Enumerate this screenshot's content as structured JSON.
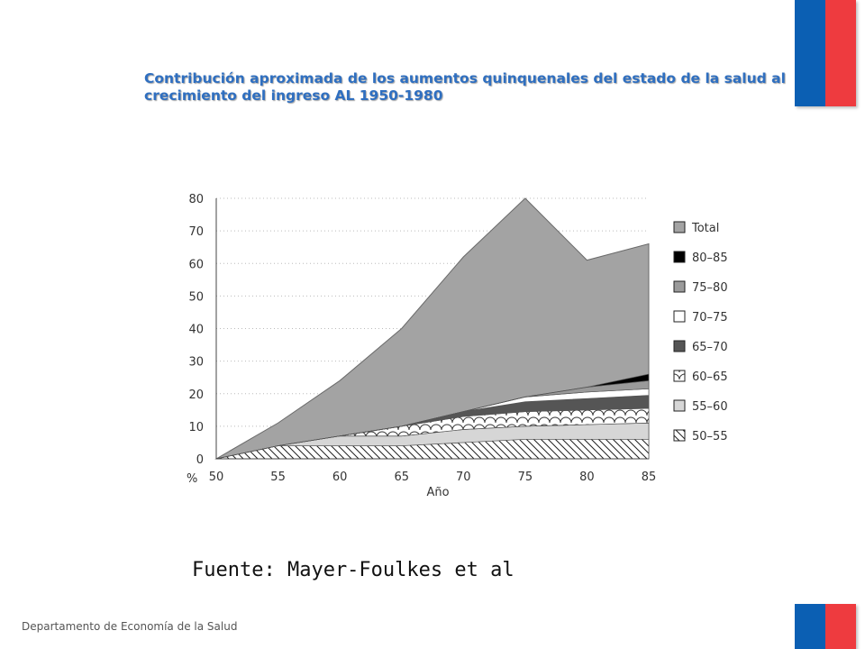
{
  "slide": {
    "title": "Contribución aproximada de los aumentos quinquenales del estado de la salud al crecimiento del ingreso AL 1950-1980",
    "source": "Fuente: Mayer-Foulkes et al",
    "footer": "Departamento de Economía de la Salud"
  },
  "flag_colors": {
    "blue": "#0b5fb3",
    "red": "#ee3b3f"
  },
  "chart_data": {
    "type": "area",
    "title": "",
    "xlabel": "Año",
    "ylabel": "%",
    "x": [
      50,
      55,
      60,
      65,
      70,
      75,
      80,
      85
    ],
    "xlim": [
      50,
      85
    ],
    "ylim": [
      0,
      80
    ],
    "yticks": [
      0,
      10,
      20,
      30,
      40,
      50,
      60,
      70,
      80
    ],
    "grid": "dotted horizontal",
    "legend_position": "right",
    "stacked": true,
    "series": [
      {
        "name": "50–55",
        "values": [
          0,
          4,
          4,
          4,
          5,
          6,
          6,
          6
        ],
        "fill": "hatch-diagonal"
      },
      {
        "name": "55–60",
        "values": [
          0,
          0,
          3,
          3,
          4,
          4,
          4.5,
          5
        ],
        "fill": "#d6d6d6"
      },
      {
        "name": "60–65",
        "values": [
          0,
          0,
          0,
          3,
          4,
          4.5,
          4.5,
          4.5
        ],
        "fill": "hatch-scallop"
      },
      {
        "name": "65–70",
        "values": [
          0,
          0,
          0,
          0,
          1.5,
          3,
          3.5,
          4
        ],
        "fill": "#555555"
      },
      {
        "name": "70–75",
        "values": [
          0,
          0,
          0,
          0,
          0,
          1.5,
          2,
          2
        ],
        "fill": "#ffffff"
      },
      {
        "name": "75–80",
        "values": [
          0,
          0,
          0,
          0,
          0,
          0,
          1.5,
          2.5
        ],
        "fill": "#9a9a9a"
      },
      {
        "name": "80–85",
        "values": [
          0,
          0,
          0,
          0,
          0,
          0,
          0,
          2
        ],
        "fill": "#000000"
      },
      {
        "name": "Total",
        "values": [
          0,
          11,
          24,
          40,
          62,
          80,
          61,
          66
        ],
        "fill": "#a3a3a3",
        "is_total": true
      }
    ]
  }
}
